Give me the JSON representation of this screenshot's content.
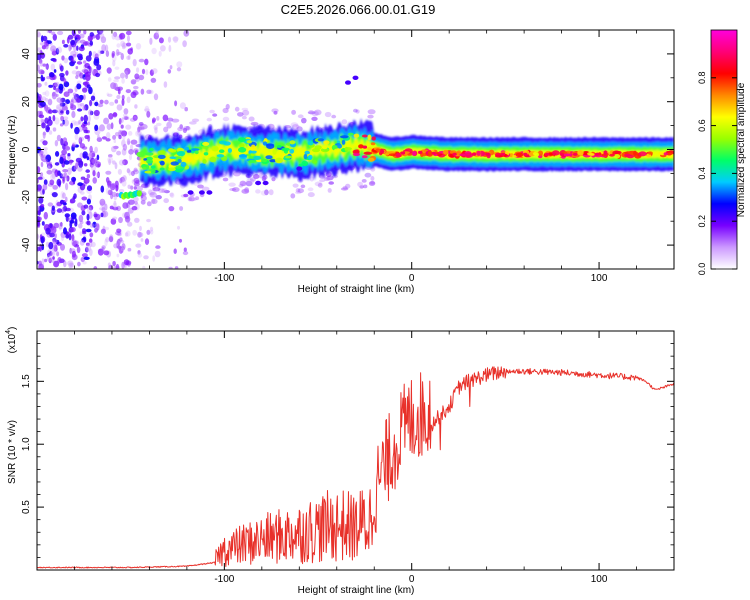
{
  "figure": {
    "title": "C2E5.2026.066.00.01.G19"
  },
  "chart_data": [
    {
      "type": "heatmap",
      "title": "",
      "xlabel": "Height of straight line (km)",
      "ylabel": "Frequency (Hz)",
      "xlim": [
        -200,
        140
      ],
      "ylim": [
        -50,
        50
      ],
      "xticks": [
        -100,
        0,
        100
      ],
      "xtick_labels": [
        "-100",
        "0",
        "100"
      ],
      "yticks": [
        -40,
        -20,
        0,
        20,
        40
      ],
      "ytick_labels": [
        "-40",
        "-20",
        "0",
        "20",
        "40"
      ],
      "colorbar": {
        "label": "Normalized spectral amplitude",
        "range": [
          0,
          1
        ],
        "ticks": [
          0.0,
          0.2,
          0.4,
          0.6,
          0.8
        ],
        "tick_labels": [
          "0.0",
          "0.2",
          "0.4",
          "0.6",
          "0.8"
        ],
        "colors": [
          "#ffffff",
          "#cc99ff",
          "#7700ff",
          "#0000ff",
          "#00ccff",
          "#00ff66",
          "#99ff00",
          "#ffff00",
          "#ff8800",
          "#ff0000",
          "#ff0077",
          "#ff00dd"
        ]
      },
      "ridge": {
        "description": "dominant frequency track vs height",
        "x": [
          -145,
          -120,
          -100,
          -80,
          -60,
          -40,
          -30,
          -20,
          -10,
          0,
          20,
          40,
          60,
          80,
          100,
          120,
          140
        ],
        "y": [
          -5,
          -4,
          0,
          -1,
          -2,
          0,
          2,
          0,
          -2,
          -1,
          -2,
          -2,
          -2,
          -2,
          -2,
          -2,
          -2
        ]
      },
      "secondary_track": {
        "x": [
          -155,
          -145
        ],
        "y": [
          -19,
          -19
        ]
      }
    },
    {
      "type": "line",
      "title": "",
      "xlabel": "Height of straight line (km)",
      "ylabel": "SNR (10 * v/v)",
      "y_multiplier_label": "(x10",
      "y_multiplier_exp": "4",
      "y_multiplier_close": ")",
      "xlim": [
        -200,
        140
      ],
      "ylim": [
        0,
        1.9
      ],
      "xticks": [
        -100,
        0,
        100
      ],
      "xtick_labels": [
        "-100",
        "0",
        "100"
      ],
      "yticks": [
        0.5,
        1.0,
        1.5
      ],
      "ytick_labels": [
        "0.5",
        "1.0",
        "1.5"
      ],
      "series": [
        {
          "name": "SNR",
          "color": "#e8312a",
          "trend_x": [
            -200,
            -150,
            -120,
            -105,
            -100,
            -80,
            -60,
            -40,
            -30,
            -22,
            -20,
            -15,
            -10,
            -5,
            0,
            10,
            20,
            25,
            30,
            40,
            50,
            60,
            80,
            100,
            120,
            125,
            130,
            140
          ],
          "trend_y": [
            0.02,
            0.02,
            0.03,
            0.06,
            0.12,
            0.18,
            0.22,
            0.27,
            0.25,
            0.3,
            0.5,
            0.7,
            0.85,
            1.0,
            1.1,
            1.15,
            1.3,
            1.45,
            1.5,
            1.55,
            1.58,
            1.58,
            1.57,
            1.55,
            1.53,
            1.5,
            1.43,
            1.48
          ]
        }
      ]
    }
  ]
}
